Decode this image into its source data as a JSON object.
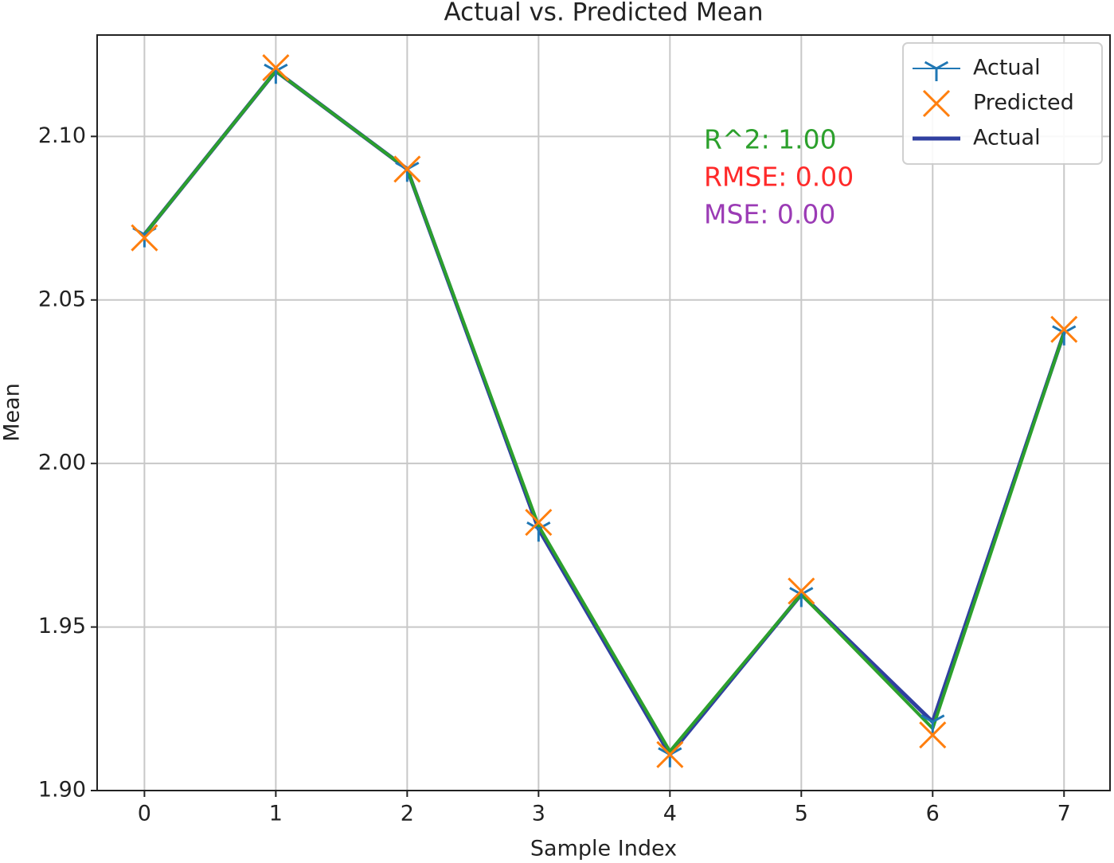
{
  "chart_data": {
    "type": "line",
    "title": "Actual vs. Predicted Mean",
    "x_label": "Sample Index",
    "y_label": "Mean",
    "x": [
      0,
      1,
      2,
      3,
      4,
      5,
      6,
      7
    ],
    "series": [
      {
        "name": "Actual",
        "color": "#1f77b4",
        "marker": "tri_down",
        "line_width": 2,
        "values": [
          2.07,
          2.12,
          2.09,
          1.98,
          1.911,
          1.96,
          1.921,
          2.04
        ]
      },
      {
        "name": "Predicted",
        "color": "#ff7f0e",
        "marker": "x",
        "line_width": 0,
        "values": [
          2.069,
          2.121,
          2.09,
          1.982,
          1.911,
          1.961,
          1.917,
          2.041
        ]
      },
      {
        "name": "Actual",
        "color": "#3040a0",
        "marker": null,
        "line_width": 5,
        "values": [
          2.07,
          2.12,
          2.09,
          1.98,
          1.911,
          1.96,
          1.921,
          2.04
        ]
      },
      {
        "color": "#2ca02c",
        "marker": null,
        "line_width": 4,
        "values": [
          2.07,
          2.12,
          2.09,
          1.981,
          1.912,
          1.96,
          1.919,
          2.04
        ]
      }
    ],
    "xlim": [
      -0.36,
      7.35
    ],
    "xticks": [
      0,
      1,
      2,
      3,
      4,
      5,
      6,
      7
    ],
    "ylim": [
      1.9,
      2.131
    ],
    "yticks": [
      {
        "value": 1.9,
        "label": "1.90"
      },
      {
        "value": 1.95,
        "label": "1.95"
      },
      {
        "value": 2.0,
        "label": "2.00"
      },
      {
        "value": 2.05,
        "label": "2.05"
      },
      {
        "value": 2.1,
        "label": "2.10"
      }
    ],
    "grid": true,
    "legend": "upper right",
    "annotations": [
      {
        "text": "R^2: 1.00",
        "color": "#2ca02c"
      },
      {
        "text": "RMSE: 0.00",
        "color": "#ff2a2a"
      },
      {
        "text": "MSE: 0.00",
        "color": "#9b3bb5"
      }
    ]
  }
}
